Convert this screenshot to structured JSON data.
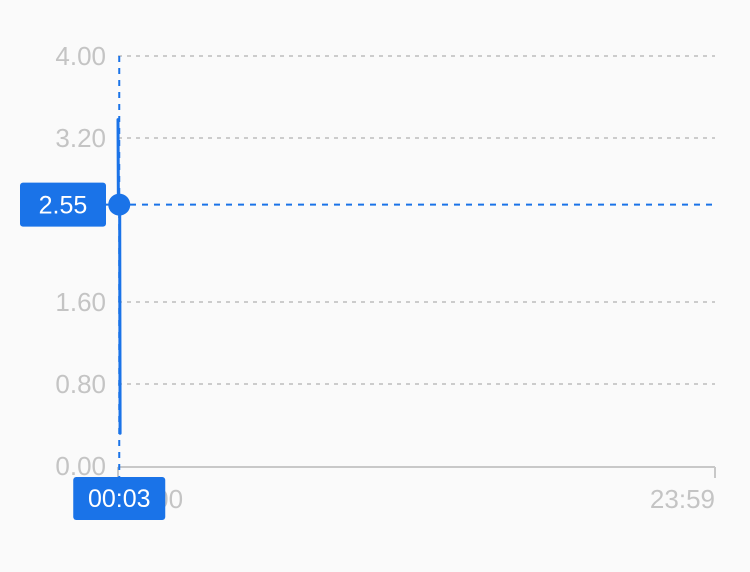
{
  "chart_data": {
    "type": "area",
    "title": "",
    "xlabel": "",
    "ylabel": "",
    "x_tick_labels": [
      "00:00",
      "23:59"
    ],
    "y_ticks": [
      {
        "value": 0.0,
        "label": "0.00"
      },
      {
        "value": 0.8,
        "label": "0.80"
      },
      {
        "value": 1.6,
        "label": "1.60"
      },
      {
        "value": 3.2,
        "label": "3.20"
      },
      {
        "value": 4.0,
        "label": "4.00"
      }
    ],
    "xlim_minutes": [
      0,
      1439
    ],
    "ylim": [
      0,
      4
    ],
    "grid": true,
    "series": [
      {
        "x_minutes": [
          0,
          1,
          3,
          4,
          5
        ],
        "values": [
          3.38,
          2.52,
          2.55,
          2.55,
          0.32
        ]
      }
    ],
    "crosshair": {
      "x_minutes": 3,
      "y_value": 2.55,
      "x_label": "00:03",
      "y_label": "2.55"
    },
    "colors": {
      "line": "#1a73e8",
      "grid": "#cccccc",
      "tick_text": "#c4c4c4",
      "badge_bg": "#1a73e8"
    }
  }
}
